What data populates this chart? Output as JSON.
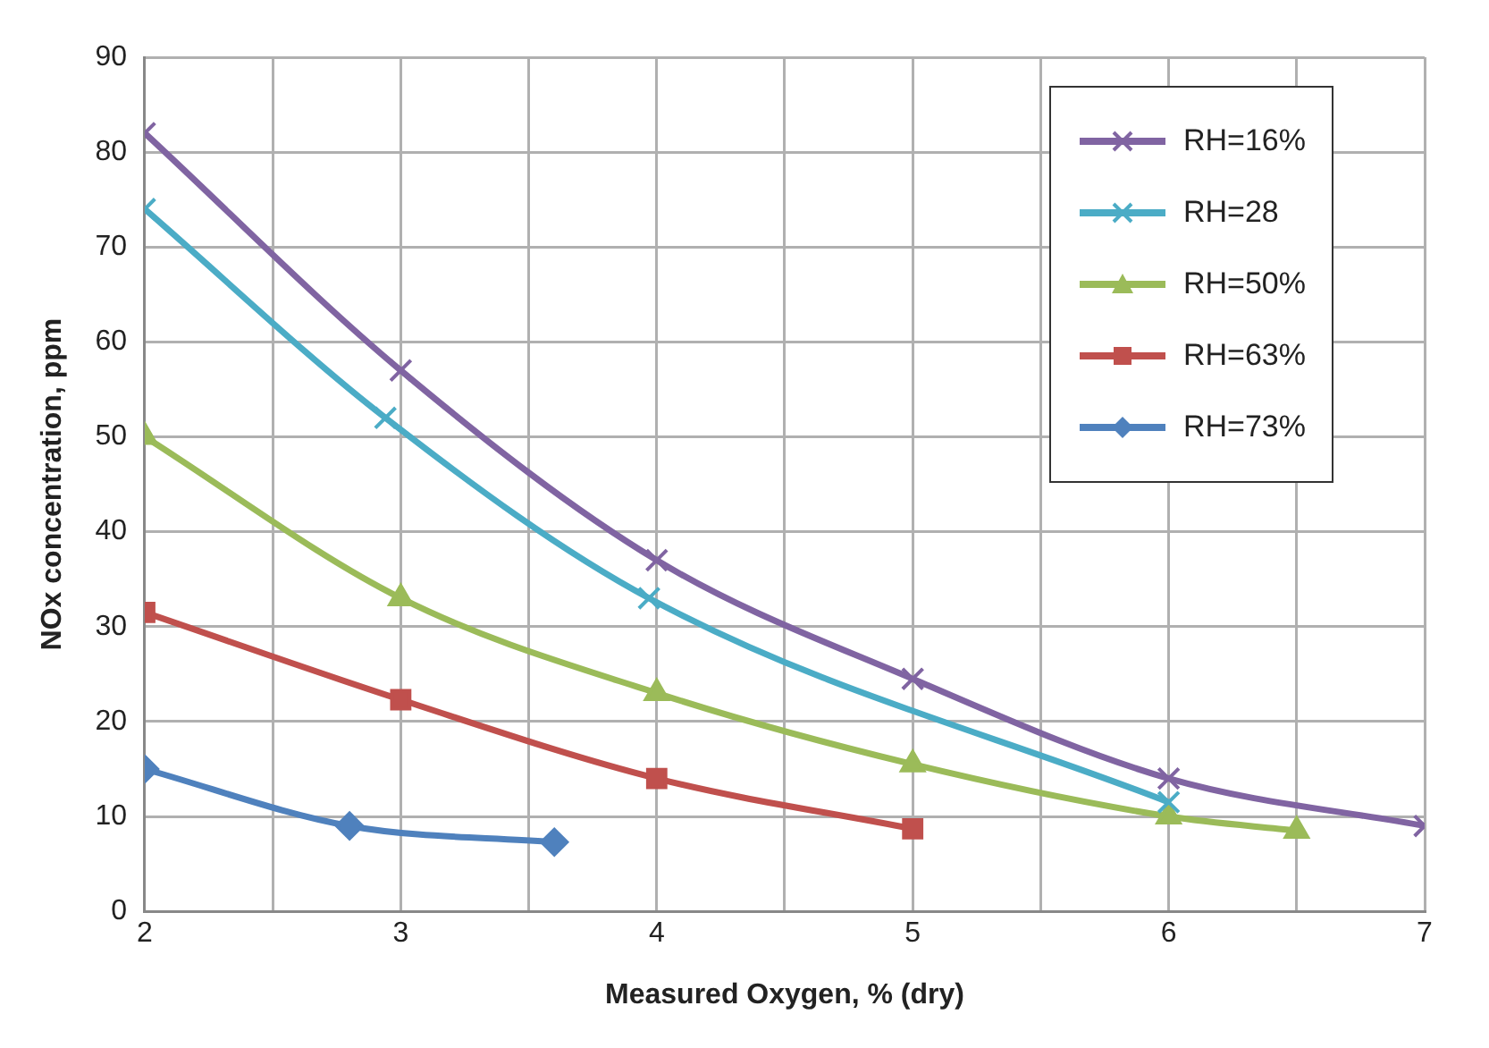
{
  "chart_data": {
    "type": "line",
    "xlabel": "Measured Oxygen, % (dry)",
    "ylabel": "NOx concentration, ppm",
    "xlim": [
      2,
      7
    ],
    "xticks": [
      2,
      {
        "value": 2.5,
        "label": null
      },
      3,
      {
        "value": 3.5,
        "label": null
      },
      4,
      {
        "value": 4.5,
        "label": null
      },
      5,
      {
        "value": 5.5,
        "label": null
      },
      6,
      {
        "value": 6.5,
        "label": null
      },
      7
    ],
    "ylim": [
      0,
      90
    ],
    "yticks": [
      0,
      10,
      20,
      30,
      40,
      50,
      60,
      70,
      80,
      90
    ],
    "grid": true,
    "legend": "top right",
    "line_style": "solid",
    "series": [
      {
        "name": "RH=16%",
        "color": "#8064a2",
        "marker": "cross",
        "x": [
          2,
          3,
          4,
          5,
          6,
          7
        ],
        "values": [
          82,
          57,
          37,
          24.5,
          14,
          9
        ]
      },
      {
        "name": "RH=28",
        "color": "#4bacc6",
        "marker": "cross",
        "x": [
          2,
          2.94,
          3.97,
          6
        ],
        "values": [
          74,
          52,
          33,
          11.5
        ]
      },
      {
        "name": "RH=50%",
        "color": "#9bbb59",
        "marker": "triangle",
        "x": [
          2,
          3,
          4,
          5,
          6,
          6.5
        ],
        "values": [
          50,
          33,
          23,
          15.5,
          10,
          8.5
        ]
      },
      {
        "name": "RH=63%",
        "color": "#c0504d",
        "marker": "square",
        "x": [
          2,
          3,
          4,
          5
        ],
        "values": [
          31.5,
          22.3,
          14,
          8.7
        ]
      },
      {
        "name": "RH=73%",
        "color": "#4f81bd",
        "marker": "diamond",
        "x": [
          2,
          2.8,
          3.6
        ],
        "values": [
          15,
          9,
          7.3
        ]
      }
    ]
  }
}
